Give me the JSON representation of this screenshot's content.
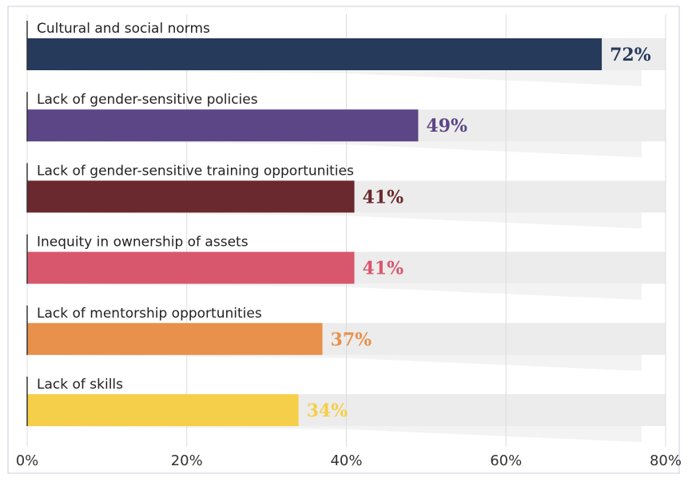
{
  "chart_data": {
    "type": "bar",
    "orientation": "horizontal",
    "categories": [
      "Cultural and social norms",
      "Lack of gender-sensitive policies",
      "Lack of gender-sensitive training opportunities",
      "Inequity in ownership of assets",
      "Lack of mentorship opportunities",
      "Lack of skills"
    ],
    "values": [
      72,
      49,
      41,
      41,
      37,
      34
    ],
    "value_labels": [
      "72%",
      "49%",
      "41%",
      "41%",
      "37%",
      "34%"
    ],
    "colors": [
      "#263a5c",
      "#5d4686",
      "#6a292e",
      "#d8576d",
      "#e7914c",
      "#f5cf49"
    ],
    "xlim": [
      0,
      80
    ],
    "xticks": [
      {
        "value": 0,
        "label": "0%"
      },
      {
        "value": 20,
        "label": "20%"
      },
      {
        "value": 40,
        "label": "40%"
      },
      {
        "value": 60,
        "label": "60%"
      },
      {
        "value": 80,
        "label": "80%"
      }
    ],
    "grid": true
  }
}
